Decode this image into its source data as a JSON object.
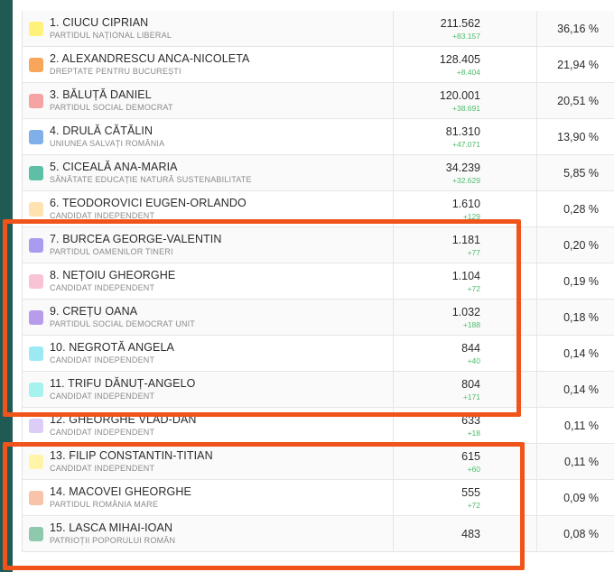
{
  "candidates": [
    {
      "name": "1. CIUCU CIPRIAN",
      "party": "PARTIDUL NAȚIONAL LIBERAL",
      "votes": "211.562",
      "delta": "+83.157",
      "pct": "36,16 %",
      "color": "#fff27a"
    },
    {
      "name": "2. ALEXANDRESCU ANCA-NICOLETA",
      "party": "DREPTATE PENTRU BUCUREȘTI",
      "votes": "128.405",
      "delta": "+8.404",
      "pct": "21,94 %",
      "color": "#f8a75a"
    },
    {
      "name": "3. BĂLUȚĂ DANIEL",
      "party": "PARTIDUL SOCIAL DEMOCRAT",
      "votes": "120.001",
      "delta": "+38.691",
      "pct": "20,51 %",
      "color": "#f5a3a3"
    },
    {
      "name": "4. DRULĂ CĂTĂLIN",
      "party": "UNIUNEA SALVAȚI ROMÂNIA",
      "votes": "81.310",
      "delta": "+47.071",
      "pct": "13,90 %",
      "color": "#7fb0ea"
    },
    {
      "name": "5. CICEALĂ ANA-MARIA",
      "party": "SĂNĂTATE EDUCAȚIE NATURĂ SUSTENABILITATE",
      "votes": "34.239",
      "delta": "+32.629",
      "pct": "5,85 %",
      "color": "#5dbfa5"
    },
    {
      "name": "6. TEODOROVICI EUGEN-ORLANDO",
      "party": "CANDIDAT INDEPENDENT",
      "votes": "1.610",
      "delta": "+129",
      "pct": "0,28 %",
      "color": "#ffe2b0"
    },
    {
      "name": "7. BURCEA GEORGE-VALENTIN",
      "party": "PARTIDUL OAMENILOR TINERI",
      "votes": "1.181",
      "delta": "+77",
      "pct": "0,20 %",
      "color": "#a99cf0"
    },
    {
      "name": "8. NEȚOIU GHEORGHE",
      "party": "CANDIDAT INDEPENDENT",
      "votes": "1.104",
      "delta": "+72",
      "pct": "0,19 %",
      "color": "#f9c3d6"
    },
    {
      "name": "9. CREȚU OANA",
      "party": "PARTIDUL SOCIAL DEMOCRAT UNIT",
      "votes": "1.032",
      "delta": "+188",
      "pct": "0,18 %",
      "color": "#b89bea"
    },
    {
      "name": "10. NEGROTĂ ANGELA",
      "party": "CANDIDAT INDEPENDENT",
      "votes": "844",
      "delta": "+40",
      "pct": "0,14 %",
      "color": "#9de9f3"
    },
    {
      "name": "11. TRIFU DĂNUȚ-ANGELO",
      "party": "CANDIDAT INDEPENDENT",
      "votes": "804",
      "delta": "+171",
      "pct": "0,14 %",
      "color": "#a5f2ef"
    },
    {
      "name": "12. GHEORGHE VLAD-DAN",
      "party": "CANDIDAT INDEPENDENT",
      "votes": "633",
      "delta": "+18",
      "pct": "0,11 %",
      "color": "#dccdf7"
    },
    {
      "name": "13. FILIP CONSTANTIN-TITIAN",
      "party": "CANDIDAT INDEPENDENT",
      "votes": "615",
      "delta": "+60",
      "pct": "0,11 %",
      "color": "#fff4a8"
    },
    {
      "name": "14. MACOVEI GHEORGHE",
      "party": "PARTIDUL ROMÂNIA MARE",
      "votes": "555",
      "delta": "+72",
      "pct": "0,09 %",
      "color": "#f7c3a9"
    },
    {
      "name": "15. LASCA MIHAI-IOAN",
      "party": "PATRIOȚII POPORULUI ROMÂN",
      "votes": "483",
      "delta": "",
      "pct": "0,08 %",
      "color": "#8ec9ad"
    }
  ],
  "colors": {
    "highlight": "#f0541a",
    "delta": "#4cbb6c"
  }
}
